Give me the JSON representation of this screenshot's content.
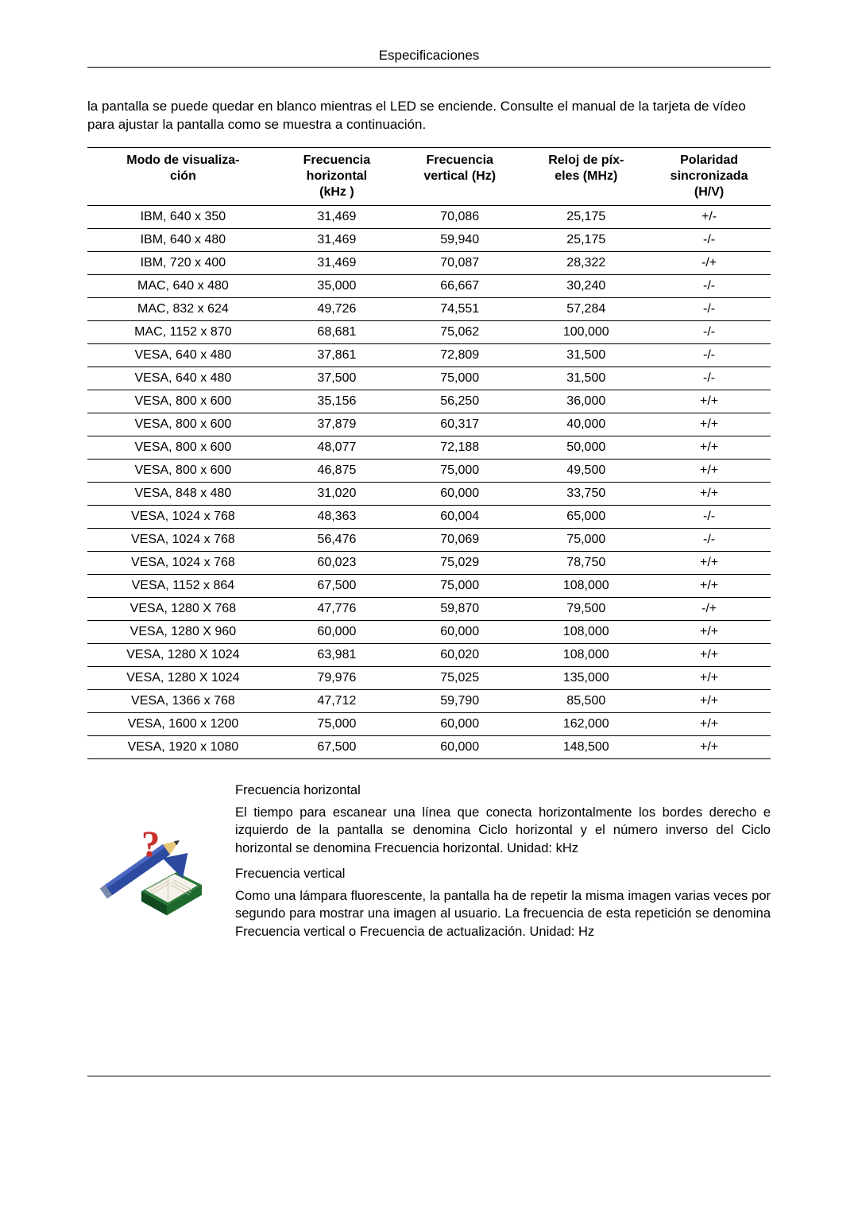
{
  "header": {
    "title": "Especificaciones"
  },
  "intro": "la pantalla se puede quedar en blanco mientras el LED se enciende. Consulte el manual de la tarjeta de vídeo para ajustar la pantalla como se muestra a continuación.",
  "table": {
    "columns": [
      "Modo de visualiza-\nción",
      "Frecuencia horizontal (kHz )",
      "Frecuencia vertical (Hz)",
      "Reloj de píx-\neles (MHz)",
      "Polaridad sincronizada (H/V)"
    ],
    "col_widths_pct": [
      28,
      17,
      19,
      18,
      18
    ],
    "rows": [
      [
        "IBM, 640 x 350",
        "31,469",
        "70,086",
        "25,175",
        "+/-"
      ],
      [
        "IBM, 640 x 480",
        "31,469",
        "59,940",
        "25,175",
        "-/-"
      ],
      [
        "IBM, 720 x 400",
        "31,469",
        "70,087",
        "28,322",
        "-/+"
      ],
      [
        "MAC, 640 x 480",
        "35,000",
        "66,667",
        "30,240",
        "-/-"
      ],
      [
        "MAC, 832 x 624",
        "49,726",
        "74,551",
        "57,284",
        "-/-"
      ],
      [
        "MAC, 1152 x 870",
        "68,681",
        "75,062",
        "100,000",
        "-/-"
      ],
      [
        "VESA, 640 x 480",
        "37,861",
        "72,809",
        "31,500",
        "-/-"
      ],
      [
        "VESA, 640 x 480",
        "37,500",
        "75,000",
        "31,500",
        "-/-"
      ],
      [
        "VESA, 800 x 600",
        "35,156",
        "56,250",
        "36,000",
        "+/+"
      ],
      [
        "VESA, 800 x 600",
        "37,879",
        "60,317",
        "40,000",
        "+/+"
      ],
      [
        "VESA, 800 x 600",
        "48,077",
        "72,188",
        "50,000",
        "+/+"
      ],
      [
        "VESA, 800 x 600",
        "46,875",
        "75,000",
        "49,500",
        "+/+"
      ],
      [
        "VESA, 848 x 480",
        "31,020",
        "60,000",
        "33,750",
        "+/+"
      ],
      [
        "VESA, 1024 x 768",
        "48,363",
        "60,004",
        "65,000",
        "-/-"
      ],
      [
        "VESA, 1024 x 768",
        "56,476",
        "70,069",
        "75,000",
        "-/-"
      ],
      [
        "VESA, 1024 x 768",
        "60,023",
        "75,029",
        "78,750",
        "+/+"
      ],
      [
        "VESA, 1152 x 864",
        "67,500",
        "75,000",
        "108,000",
        "+/+"
      ],
      [
        "VESA, 1280 X 768",
        "47,776",
        "59,870",
        "79,500",
        "-/+"
      ],
      [
        "VESA, 1280 X 960",
        "60,000",
        "60,000",
        "108,000",
        "+/+"
      ],
      [
        "VESA, 1280 X 1024",
        "63,981",
        "60,020",
        "108,000",
        "+/+"
      ],
      [
        "VESA, 1280 X 1024",
        "79,976",
        "75,025",
        "135,000",
        "+/+"
      ],
      [
        "VESA, 1366 x 768",
        "47,712",
        "59,790",
        "85,500",
        "+/+"
      ],
      [
        "VESA, 1600 x 1200",
        "75,000",
        "60,000",
        "162,000",
        "+/+"
      ],
      [
        "VESA, 1920 x 1080",
        "67,500",
        "60,000",
        "148,500",
        "+/+"
      ]
    ],
    "header_fontsize": 16,
    "cell_fontsize": 16,
    "border_color": "#000000"
  },
  "definitions": {
    "h_title": "Frecuencia horizontal",
    "h_body": "El tiempo para escanear una línea que conecta horizontalmente los bordes derecho e izquierdo de la pantalla se denomina Ciclo horizontal y el número inverso del Ciclo horizontal se denomina Frecuencia horizontal. Unidad: kHz",
    "v_title": "Frecuencia vertical",
    "v_body": "Como una lámpara fluorescente, la pantalla ha de repetir la misma imagen varias veces por segundo para mostrar una imagen al usuario. La frecuencia de esta repetición se denomina Frecuencia vertical o Frecuencia de actualización. Unidad: Hz"
  },
  "icon": {
    "name": "question-book-pencil-icon",
    "colors": {
      "pencil_body": "#2b4aa0",
      "pencil_tip": "#e9c77a",
      "book_cover": "#2a7a3a",
      "book_shadow": "#104a1e",
      "pages": "#f5f2ea",
      "question": "#c9302c",
      "triangle": "#2b4aa0"
    }
  },
  "typography": {
    "body_font": "Arial",
    "intro_fontsize": 17,
    "def_fontsize": 16.5
  },
  "colors": {
    "text": "#000000",
    "background": "#ffffff",
    "rule": "#000000"
  }
}
